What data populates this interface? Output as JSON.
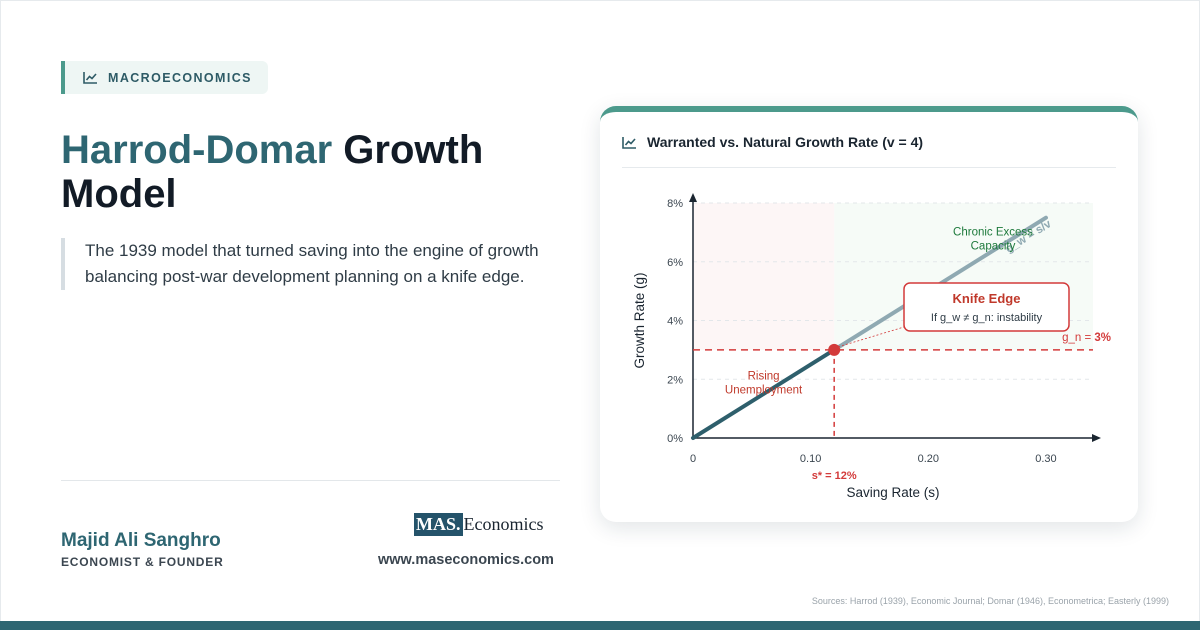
{
  "badge": {
    "icon": "trend-line-icon",
    "label": "MACROECONOMICS"
  },
  "title": {
    "accent": "Harrod-Domar",
    "rest": "Growth Model"
  },
  "lead": "The 1939 model that turned saving into the engine of growth balancing post-war development planning on a knife edge.",
  "author": {
    "name": "Majid Ali Sanghro",
    "role": "ECONOMIST & FOUNDER"
  },
  "brand": {
    "logo_mas": "MAS.",
    "logo_rest": "Economics",
    "website": "www.maseconomics.com"
  },
  "card": {
    "icon": "trend-line-icon",
    "title": "Warranted vs. Natural Growth Rate (v = 4)"
  },
  "chart_data": {
    "type": "line",
    "xlabel": "Saving Rate (s)",
    "ylabel": "Growth Rate (g)",
    "xlim": [
      0,
      0.34
    ],
    "ylim": [
      0,
      8
    ],
    "x_ticks": [
      {
        "value": 0,
        "label": "0"
      },
      {
        "value": 0.1,
        "label": "0.10"
      },
      {
        "value": 0.2,
        "label": "0.20"
      },
      {
        "value": 0.3,
        "label": "0.30"
      }
    ],
    "y_ticks": [
      {
        "value": 0,
        "label": "0%"
      },
      {
        "value": 2,
        "label": "2%"
      },
      {
        "value": 4,
        "label": "4%"
      },
      {
        "value": 6,
        "label": "6%"
      },
      {
        "value": 8,
        "label": "8%"
      }
    ],
    "grid": true,
    "warranted_line": {
      "label": "g_w = s/v",
      "x": [
        0,
        0.3
      ],
      "y": [
        0,
        7.5
      ],
      "color_low": "#2e5f6c",
      "color_high": "#8fa9b2"
    },
    "natural_line": {
      "label_prefix": "g_n = ",
      "label_value": "3%",
      "y": 3,
      "color": "#d33a3a"
    },
    "equilibrium": {
      "x": 0.12,
      "y": 3,
      "label": "s* = 12%",
      "color": "#d33a3a"
    },
    "regions": [
      {
        "label_lines": [
          "Rising",
          "Unemployment"
        ],
        "x_range": [
          0,
          0.12
        ],
        "color": "#c0392b"
      },
      {
        "label_lines": [
          "Chronic Excess",
          "Capacity"
        ],
        "x_range": [
          0.12,
          0.34
        ],
        "color": "#1e7a3c"
      }
    ],
    "callout": {
      "title": "Knife Edge",
      "text": "If g_w ≠ g_n: instability"
    }
  },
  "sources": "Sources: Harrod (1939), Economic Journal; Domar (1946), Econometrica; Easterly (1999)"
}
